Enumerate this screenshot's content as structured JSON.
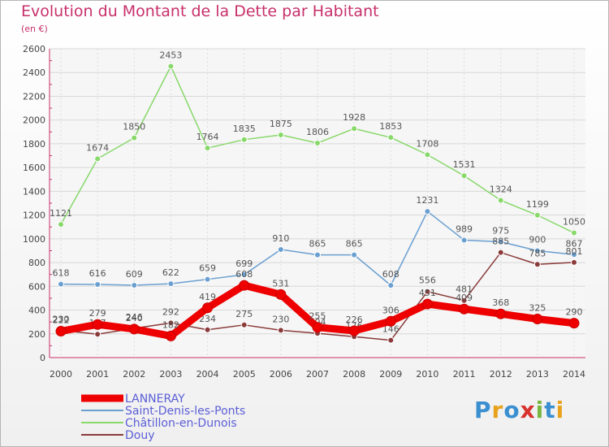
{
  "header": {
    "title": "Evolution du Montant de la Dette par Habitant",
    "subtitle": "(en €)"
  },
  "logo": {
    "letters": [
      "P",
      "r",
      "o",
      "x",
      "i",
      "t",
      "i"
    ]
  },
  "chart_data": {
    "type": "line",
    "title": "Evolution du Montant de la Dette par Habitant",
    "subtitle": "(en €)",
    "x": [
      "2000",
      "2001",
      "2002",
      "2003",
      "2004",
      "2005",
      "2006",
      "2007",
      "2008",
      "2009",
      "2010",
      "2011",
      "2012",
      "2013",
      "2014"
    ],
    "y_ticks": [
      "0",
      "200",
      "400",
      "600",
      "800",
      "1000",
      "1200",
      "1400",
      "1600",
      "1800",
      "2000",
      "2200",
      "2400",
      "2600"
    ],
    "ylim": [
      0,
      2600
    ],
    "grid": true,
    "legend_position": "bottom-left",
    "series": [
      {
        "name": "LANNERAY",
        "color": "#ee0000",
        "emphasis": true,
        "values": [
          222,
          279,
          240,
          182,
          419,
          608,
          531,
          255,
          226,
          306,
          451,
          409,
          368,
          325,
          290
        ],
        "labels": [
          "222",
          "279",
          "240",
          "182",
          "419",
          "608",
          "531",
          "255",
          "226",
          "306",
          "451",
          "409",
          "368",
          "325",
          "290"
        ]
      },
      {
        "name": "Saint-Denis-les-Ponts",
        "color": "#6a9fd0",
        "values": [
          618,
          616,
          609,
          622,
          659,
          699,
          910,
          865,
          865,
          608,
          1231,
          989,
          975,
          900,
          867
        ],
        "labels": [
          "618",
          "616",
          "609",
          "622",
          "659",
          "699",
          "910",
          "865",
          "865",
          "608",
          "1231",
          "989",
          "975",
          "900",
          "867"
        ]
      },
      {
        "name": "Châtillon-en-Dunois",
        "color": "#88d86a",
        "values": [
          1121,
          1674,
          1850,
          2453,
          1764,
          1835,
          1875,
          1806,
          1928,
          1853,
          1708,
          1531,
          1324,
          1199,
          1050
        ],
        "labels": [
          "1121",
          "1674",
          "1850",
          "2453",
          "1764",
          "1835",
          "1875",
          "1806",
          "1928",
          "1853",
          "1708",
          "1531",
          "1324",
          "1199",
          "1050"
        ]
      },
      {
        "name": "Douy",
        "color": "#8a3a3a",
        "values": [
          230,
          197,
          246,
          292,
          234,
          275,
          230,
          204,
          176,
          146,
          556,
          481,
          885,
          785,
          801
        ],
        "labels": [
          "230",
          "197",
          "246",
          "292",
          "234",
          "275",
          "230",
          "204",
          "176",
          "146",
          "556",
          "481",
          "885",
          "785",
          "801"
        ]
      }
    ]
  }
}
